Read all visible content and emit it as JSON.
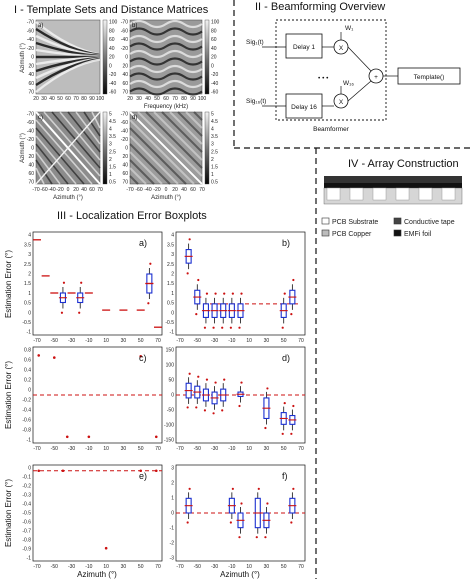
{
  "sections": {
    "s1": "I - Template Sets and Distance Matrices",
    "s2": "II - Beamforming Overview",
    "s3": "III - Localization Error Boxplots",
    "s4": "IV - Array Construction"
  },
  "sec1": {
    "panels": [
      "a)",
      "b)",
      "c)",
      "d)"
    ],
    "ylabel": "Azimuth (°)",
    "xlabel_top": "Frequency (kHz)",
    "xlabel_bottom": "Azimuth (°)",
    "az_ticks": [
      "-70",
      "-60",
      "-40",
      "-20",
      "0",
      "20",
      "40",
      "60",
      "70"
    ],
    "az_ticks_short": [
      "-70",
      "-60",
      "-40",
      "-20",
      "0",
      "20",
      "40",
      "60",
      "70"
    ],
    "freq_ticks": [
      "20",
      "30",
      "40",
      "50",
      "60",
      "70",
      "80",
      "90",
      "100"
    ],
    "cb_a": [
      "100",
      "80",
      "60",
      "40",
      "20",
      "0",
      "-20",
      "-40",
      "-60"
    ],
    "cb_b": [
      "100",
      "80",
      "60",
      "40",
      "20",
      "0",
      "-20",
      "-40",
      "-60"
    ],
    "cb_c": [
      "5",
      "4.5",
      "4",
      "3.5",
      "3",
      "2.5",
      "2",
      "1.5",
      "1",
      "0.5"
    ],
    "cb_d": [
      "5",
      "4.5",
      "4",
      "3.5",
      "3",
      "2.5",
      "2",
      "1.5",
      "1",
      "0.5"
    ]
  },
  "sec2": {
    "sig1": "Sig₁(t)",
    "sig16": "Sig₁₆(t)",
    "delay1": "Delay 1",
    "delay16": "Delay 16",
    "w1": "W₁",
    "w16": "W₁₆",
    "times": "X",
    "plus": "+",
    "dots": "• • •",
    "template": "Template()",
    "beamformer": "Beamformer"
  },
  "sec4": {
    "legend": [
      "PCB Substrate",
      "Conductive tape",
      "PCB Copper",
      "EMFi foil"
    ]
  },
  "sec3": {
    "ylabel": "Estimation Error (°)",
    "xlabel": "Azimuth (°)",
    "xticks": [
      "-70",
      "-50",
      "-30",
      "-10",
      "10",
      "30",
      "50",
      "70"
    ],
    "panels": [
      "a)",
      "b)",
      "c)",
      "d)",
      "e)",
      "f)"
    ],
    "yticks_row1": [
      "4",
      "3.5",
      "3",
      "2.5",
      "2",
      "1.5",
      "1",
      "0.5",
      "0",
      "-0.5",
      "-1"
    ],
    "yticks_row2": [
      "0.8",
      "0.6",
      "0.4",
      "0.2",
      "0",
      "-0.2",
      "-0.4",
      "-0.6",
      "-0.8",
      "-1"
    ],
    "yticks_row3": [
      "0",
      "-0.1",
      "-0.2",
      "-0.3",
      "-0.4",
      "-0.5",
      "-0.6",
      "-0.7",
      "-0.8",
      "-0.9",
      "-1"
    ],
    "yticks_d": [
      "150",
      "100",
      "50",
      "0",
      "-50",
      "-100",
      "-150"
    ],
    "yticks_f": [
      "3",
      "2",
      "1",
      "0",
      "-1",
      "-2",
      "-3"
    ]
  },
  "chart_data": [
    {
      "type": "scatter",
      "panel": "a)",
      "xlim": [
        -70,
        70
      ],
      "ylim": [
        -1,
        4
      ],
      "points": [
        [
          -70,
          3.8
        ],
        [
          -60,
          1.9
        ],
        [
          -50,
          1
        ],
        [
          -30,
          1
        ],
        [
          -10,
          1
        ],
        [
          10,
          0.1
        ],
        [
          30,
          0.1
        ],
        [
          50,
          0.1
        ],
        [
          60,
          1.5
        ],
        [
          70,
          -0.8
        ]
      ],
      "boxes": [
        [
          -40,
          0.5,
          1
        ],
        [
          -20,
          0.5,
          1
        ],
        [
          60,
          1,
          2
        ]
      ]
    },
    {
      "type": "scatter",
      "panel": "b)",
      "xlim": [
        -70,
        70
      ],
      "ylim": [
        -1,
        6
      ],
      "boxes": [
        [
          -60,
          4,
          5
        ],
        [
          -50,
          1,
          2
        ],
        [
          -40,
          0,
          1
        ],
        [
          -30,
          0,
          1
        ],
        [
          -20,
          0,
          1
        ],
        [
          -10,
          0,
          1
        ],
        [
          0,
          0,
          1
        ],
        [
          50,
          0,
          1
        ],
        [
          60,
          1,
          2
        ]
      ]
    },
    {
      "type": "scatter",
      "panel": "c)",
      "xlim": [
        -70,
        70
      ],
      "ylim": [
        -1,
        1
      ],
      "points": [
        [
          -68,
          0.9
        ],
        [
          -50,
          0.85
        ],
        [
          -35,
          -0.95
        ],
        [
          -10,
          -0.95
        ],
        [
          50,
          0.88
        ],
        [
          68,
          -0.95
        ]
      ]
    },
    {
      "type": "scatter",
      "panel": "d)",
      "xlim": [
        -70,
        70
      ],
      "ylim": [
        -150,
        150
      ],
      "boxes": [
        [
          -60,
          -10,
          40
        ],
        [
          -50,
          -10,
          30
        ],
        [
          -40,
          -20,
          20
        ],
        [
          -30,
          -30,
          10
        ],
        [
          -20,
          -20,
          20
        ],
        [
          0,
          -5,
          10
        ],
        [
          30,
          -80,
          -10
        ],
        [
          50,
          -100,
          -60
        ],
        [
          60,
          -100,
          -70
        ]
      ]
    },
    {
      "type": "scatter",
      "panel": "e)",
      "xlim": [
        -70,
        70
      ],
      "ylim": [
        -1,
        0
      ],
      "points": [
        [
          -68,
          -0.02
        ],
        [
          -40,
          -0.02
        ],
        [
          10,
          -0.9
        ],
        [
          50,
          -0.02
        ],
        [
          68,
          -0.02
        ]
      ]
    },
    {
      "type": "scatter",
      "panel": "f)",
      "xlim": [
        -70,
        70
      ],
      "ylim": [
        -3,
        3
      ],
      "boxes": [
        [
          -60,
          0,
          1
        ],
        [
          -10,
          0,
          1
        ],
        [
          0,
          -1,
          0
        ],
        [
          20,
          -1,
          1
        ],
        [
          30,
          -1,
          0
        ],
        [
          60,
          0,
          1
        ]
      ]
    }
  ]
}
